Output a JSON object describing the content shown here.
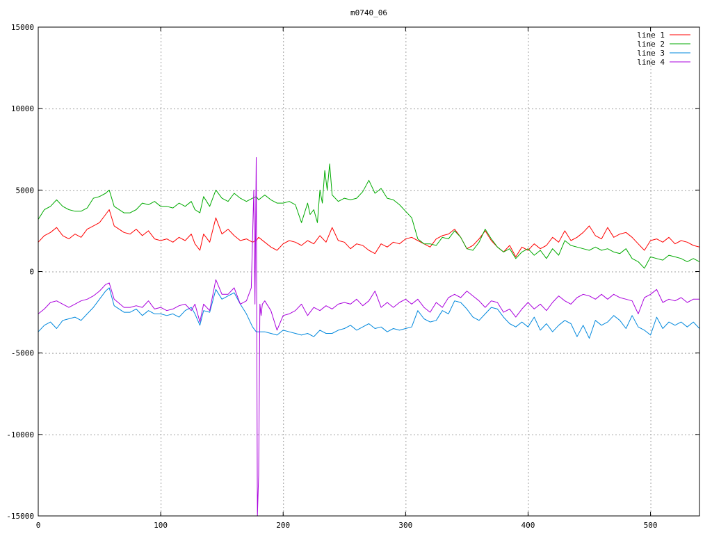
{
  "chart_data": {
    "type": "line",
    "title": "m0740_06",
    "xlabel": "",
    "ylabel": "",
    "xlim": [
      0,
      540
    ],
    "ylim": [
      -15000,
      15000
    ],
    "x_ticks": [
      0,
      100,
      200,
      300,
      400,
      500
    ],
    "y_ticks": [
      -15000,
      -10000,
      -5000,
      0,
      5000,
      10000,
      15000
    ],
    "grid": true,
    "legend_position": "top-right",
    "series": [
      {
        "name": "line 1",
        "color": "#ff0000",
        "x": [
          0,
          5,
          10,
          15,
          20,
          25,
          30,
          35,
          40,
          45,
          50,
          55,
          58,
          62,
          70,
          75,
          80,
          85,
          90,
          95,
          100,
          105,
          110,
          115,
          120,
          125,
          128,
          132,
          135,
          140,
          145,
          150,
          155,
          160,
          165,
          170,
          175,
          178,
          180,
          185,
          190,
          195,
          200,
          205,
          210,
          215,
          220,
          225,
          230,
          235,
          240,
          245,
          250,
          255,
          260,
          265,
          270,
          275,
          280,
          285,
          290,
          295,
          300,
          305,
          310,
          315,
          320,
          325,
          330,
          335,
          340,
          345,
          350,
          355,
          360,
          365,
          370,
          375,
          380,
          385,
          390,
          395,
          400,
          405,
          410,
          415,
          420,
          425,
          430,
          435,
          440,
          445,
          450,
          455,
          460,
          465,
          470,
          475,
          480,
          485,
          490,
          495,
          500,
          505,
          510,
          515,
          520,
          525,
          530,
          535,
          540
        ],
        "y": [
          1800,
          2200,
          2400,
          2700,
          2200,
          2000,
          2300,
          2100,
          2600,
          2800,
          3000,
          3500,
          3800,
          2800,
          2400,
          2300,
          2600,
          2200,
          2500,
          2000,
          1900,
          2000,
          1800,
          2100,
          1900,
          2300,
          1700,
          1300,
          2300,
          1800,
          3300,
          2300,
          2600,
          2200,
          1900,
          2000,
          1800,
          1900,
          2100,
          1800,
          1500,
          1300,
          1700,
          1900,
          1800,
          1600,
          1900,
          1700,
          2200,
          1800,
          2700,
          1900,
          1800,
          1400,
          1700,
          1600,
          1300,
          1100,
          1700,
          1500,
          1800,
          1700,
          2000,
          2100,
          1900,
          1700,
          1500,
          2000,
          2200,
          2300,
          2600,
          2100,
          1400,
          1600,
          2000,
          2500,
          1900,
          1500,
          1200,
          1600,
          900,
          1500,
          1300,
          1700,
          1400,
          1600,
          2100,
          1800,
          2500,
          1900,
          2100,
          2400,
          2800,
          2200,
          2000,
          2700,
          2100,
          2300,
          2400,
          2100,
          1700,
          1300,
          1900,
          2000,
          1800,
          2100,
          1700,
          1900,
          1800,
          1600,
          1500
        ]
      },
      {
        "name": "line 2",
        "color": "#00aa00",
        "x": [
          0,
          5,
          10,
          15,
          20,
          25,
          30,
          35,
          40,
          45,
          50,
          55,
          58,
          62,
          70,
          75,
          80,
          85,
          90,
          95,
          100,
          105,
          110,
          115,
          120,
          125,
          128,
          132,
          135,
          140,
          145,
          150,
          155,
          160,
          165,
          170,
          175,
          178,
          180,
          185,
          190,
          195,
          200,
          205,
          210,
          215,
          220,
          222,
          225,
          228,
          230,
          232,
          234,
          236,
          238,
          240,
          245,
          250,
          255,
          260,
          265,
          270,
          275,
          280,
          285,
          290,
          295,
          300,
          305,
          310,
          315,
          320,
          325,
          330,
          335,
          340,
          345,
          350,
          355,
          360,
          365,
          370,
          375,
          380,
          385,
          390,
          395,
          400,
          405,
          410,
          415,
          420,
          425,
          430,
          435,
          440,
          445,
          450,
          455,
          460,
          465,
          470,
          475,
          480,
          485,
          490,
          495,
          500,
          505,
          510,
          515,
          520,
          525,
          530,
          535,
          540
        ],
        "y": [
          3200,
          3800,
          4000,
          4400,
          4000,
          3800,
          3700,
          3700,
          3900,
          4500,
          4600,
          4800,
          5000,
          4000,
          3600,
          3600,
          3800,
          4200,
          4100,
          4300,
          4000,
          4000,
          3900,
          4200,
          4000,
          4300,
          3800,
          3600,
          4600,
          4000,
          5000,
          4500,
          4300,
          4800,
          4500,
          4300,
          4500,
          4600,
          4400,
          4700,
          4400,
          4200,
          4200,
          4300,
          4100,
          3000,
          4200,
          3500,
          3800,
          3000,
          5000,
          4200,
          6200,
          5000,
          6600,
          4700,
          4300,
          4500,
          4400,
          4500,
          4900,
          5600,
          4800,
          5100,
          4500,
          4400,
          4100,
          3700,
          3300,
          2000,
          1700,
          1700,
          1600,
          2100,
          2000,
          2500,
          2100,
          1400,
          1300,
          1800,
          2600,
          2000,
          1500,
          1200,
          1400,
          800,
          1200,
          1400,
          1000,
          1300,
          800,
          1400,
          1000,
          1900,
          1600,
          1500,
          1400,
          1300,
          1500,
          1300,
          1400,
          1200,
          1100,
          1400,
          800,
          600,
          200,
          900,
          800,
          700,
          1000,
          900,
          800,
          600,
          800,
          600
        ]
      },
      {
        "name": "line 3",
        "color": "#0088dd",
        "x": [
          0,
          5,
          10,
          15,
          20,
          25,
          30,
          35,
          40,
          45,
          50,
          55,
          58,
          62,
          70,
          75,
          80,
          85,
          90,
          95,
          100,
          105,
          110,
          115,
          120,
          125,
          128,
          132,
          135,
          140,
          145,
          150,
          155,
          160,
          165,
          170,
          175,
          178,
          180,
          185,
          190,
          195,
          200,
          205,
          210,
          215,
          220,
          225,
          230,
          235,
          240,
          245,
          250,
          255,
          260,
          265,
          270,
          275,
          280,
          285,
          290,
          295,
          300,
          305,
          310,
          315,
          320,
          325,
          330,
          335,
          340,
          345,
          350,
          355,
          360,
          365,
          370,
          375,
          380,
          385,
          390,
          395,
          400,
          405,
          410,
          415,
          420,
          425,
          430,
          435,
          440,
          445,
          450,
          455,
          460,
          465,
          470,
          475,
          480,
          485,
          490,
          495,
          500,
          505,
          510,
          515,
          520,
          525,
          530,
          535,
          540
        ],
        "y": [
          -3700,
          -3300,
          -3100,
          -3500,
          -3000,
          -2900,
          -2800,
          -3000,
          -2600,
          -2200,
          -1700,
          -1200,
          -1000,
          -2100,
          -2500,
          -2500,
          -2300,
          -2700,
          -2400,
          -2600,
          -2600,
          -2700,
          -2600,
          -2800,
          -2400,
          -2200,
          -2600,
          -3300,
          -2400,
          -2500,
          -1100,
          -1700,
          -1500,
          -1300,
          -2000,
          -2600,
          -3400,
          -3700,
          -3700,
          -3700,
          -3800,
          -3900,
          -3600,
          -3700,
          -3800,
          -3900,
          -3800,
          -4000,
          -3600,
          -3800,
          -3800,
          -3600,
          -3500,
          -3300,
          -3600,
          -3400,
          -3200,
          -3500,
          -3400,
          -3700,
          -3500,
          -3600,
          -3500,
          -3400,
          -2400,
          -2900,
          -3100,
          -3000,
          -2400,
          -2600,
          -1800,
          -1900,
          -2300,
          -2800,
          -3000,
          -2600,
          -2200,
          -2300,
          -2800,
          -3200,
          -3400,
          -3100,
          -3400,
          -2800,
          -3600,
          -3200,
          -3700,
          -3300,
          -3000,
          -3200,
          -4000,
          -3300,
          -4100,
          -3000,
          -3300,
          -3100,
          -2700,
          -3000,
          -3500,
          -2700,
          -3400,
          -3600,
          -3900,
          -2800,
          -3500,
          -3100,
          -3300,
          -3100,
          -3400,
          -3100,
          -3500
        ]
      },
      {
        "name": "line 4",
        "color": "#aa00dd",
        "x": [
          0,
          5,
          10,
          15,
          20,
          25,
          30,
          35,
          40,
          45,
          50,
          55,
          58,
          62,
          70,
          75,
          80,
          85,
          90,
          95,
          100,
          105,
          110,
          115,
          120,
          125,
          128,
          132,
          135,
          140,
          145,
          150,
          155,
          160,
          165,
          170,
          174,
          176,
          177,
          178,
          179,
          180,
          181,
          182,
          183,
          185,
          190,
          195,
          200,
          205,
          210,
          215,
          220,
          225,
          230,
          235,
          240,
          245,
          250,
          255,
          260,
          265,
          270,
          275,
          280,
          285,
          290,
          295,
          300,
          305,
          310,
          315,
          320,
          325,
          330,
          335,
          340,
          345,
          350,
          355,
          360,
          365,
          370,
          375,
          380,
          385,
          390,
          395,
          400,
          405,
          410,
          415,
          420,
          425,
          430,
          435,
          440,
          445,
          450,
          455,
          460,
          465,
          470,
          475,
          480,
          485,
          490,
          495,
          500,
          505,
          510,
          515,
          520,
          525,
          530,
          535,
          540
        ],
        "y": [
          -2600,
          -2300,
          -1900,
          -1800,
          -2000,
          -2200,
          -2000,
          -1800,
          -1700,
          -1500,
          -1200,
          -800,
          -700,
          -1700,
          -2200,
          -2200,
          -2100,
          -2200,
          -1800,
          -2300,
          -2200,
          -2400,
          -2300,
          -2100,
          -2000,
          -2400,
          -2000,
          -3100,
          -2000,
          -2400,
          -500,
          -1400,
          -1400,
          -1000,
          -2000,
          -1800,
          -1000,
          5000,
          -2000,
          7000,
          -15000,
          -12500,
          -2000,
          -2700,
          -2000,
          -1800,
          -2400,
          -3600,
          -2700,
          -2600,
          -2400,
          -2000,
          -2700,
          -2200,
          -2400,
          -2100,
          -2300,
          -2000,
          -1900,
          -2000,
          -1700,
          -2100,
          -1800,
          -1200,
          -2200,
          -1900,
          -2200,
          -1900,
          -1700,
          -2000,
          -1700,
          -2200,
          -2500,
          -1900,
          -2200,
          -1600,
          -1400,
          -1600,
          -1200,
          -1500,
          -1800,
          -2200,
          -1800,
          -1900,
          -2500,
          -2300,
          -2800,
          -2300,
          -1900,
          -2300,
          -2000,
          -2400,
          -1900,
          -1500,
          -1800,
          -2000,
          -1600,
          -1400,
          -1500,
          -1700,
          -1400,
          -1700,
          -1400,
          -1600,
          -1700,
          -1800,
          -2600,
          -1600,
          -1400,
          -1100,
          -1900,
          -1700,
          -1800,
          -1600,
          -1900,
          -1700,
          -1700
        ]
      }
    ]
  }
}
